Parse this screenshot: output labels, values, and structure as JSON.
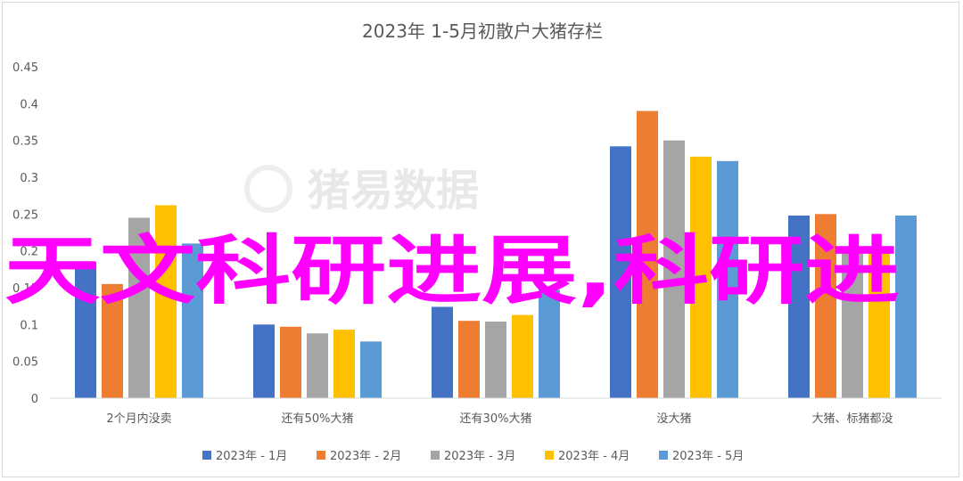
{
  "chart_data": {
    "type": "bar",
    "title": "2023年 1-5月初散户大猪存栏",
    "categories": [
      "2个月内没卖",
      "还有50%大猪",
      "还有30%大猪",
      "没大猪",
      "大猪、标猪都没"
    ],
    "series": [
      {
        "name": "2023年 - 1月",
        "color": "#4472c4",
        "values": [
          0.185,
          0.1,
          0.124,
          0.342,
          0.248
        ]
      },
      {
        "name": "2023年 - 2月",
        "color": "#ed7d31",
        "values": [
          0.155,
          0.097,
          0.105,
          0.39,
          0.25
        ]
      },
      {
        "name": "2023年 - 3月",
        "color": "#a5a5a5",
        "values": [
          0.245,
          0.088,
          0.104,
          0.35,
          0.2
        ]
      },
      {
        "name": "2023年 - 4月",
        "color": "#ffc000",
        "values": [
          0.262,
          0.093,
          0.113,
          0.328,
          0.2
        ]
      },
      {
        "name": "2023年 - 5月",
        "color": "#5b9bd5",
        "values": [
          0.21,
          0.077,
          0.147,
          0.322,
          0.248
        ]
      }
    ],
    "ylim": [
      0,
      0.45
    ],
    "yticks": [
      "0",
      "0.05",
      "0.1",
      "0.15",
      "0.2",
      "0.25",
      "0.3",
      "0.35",
      "0.4",
      "0.45"
    ],
    "xlabel": "",
    "ylabel": "",
    "grid": false,
    "legend_position": "bottom"
  },
  "watermark": {
    "text": "猪易数据"
  },
  "overlay_text": "天文科研进展,科研进"
}
